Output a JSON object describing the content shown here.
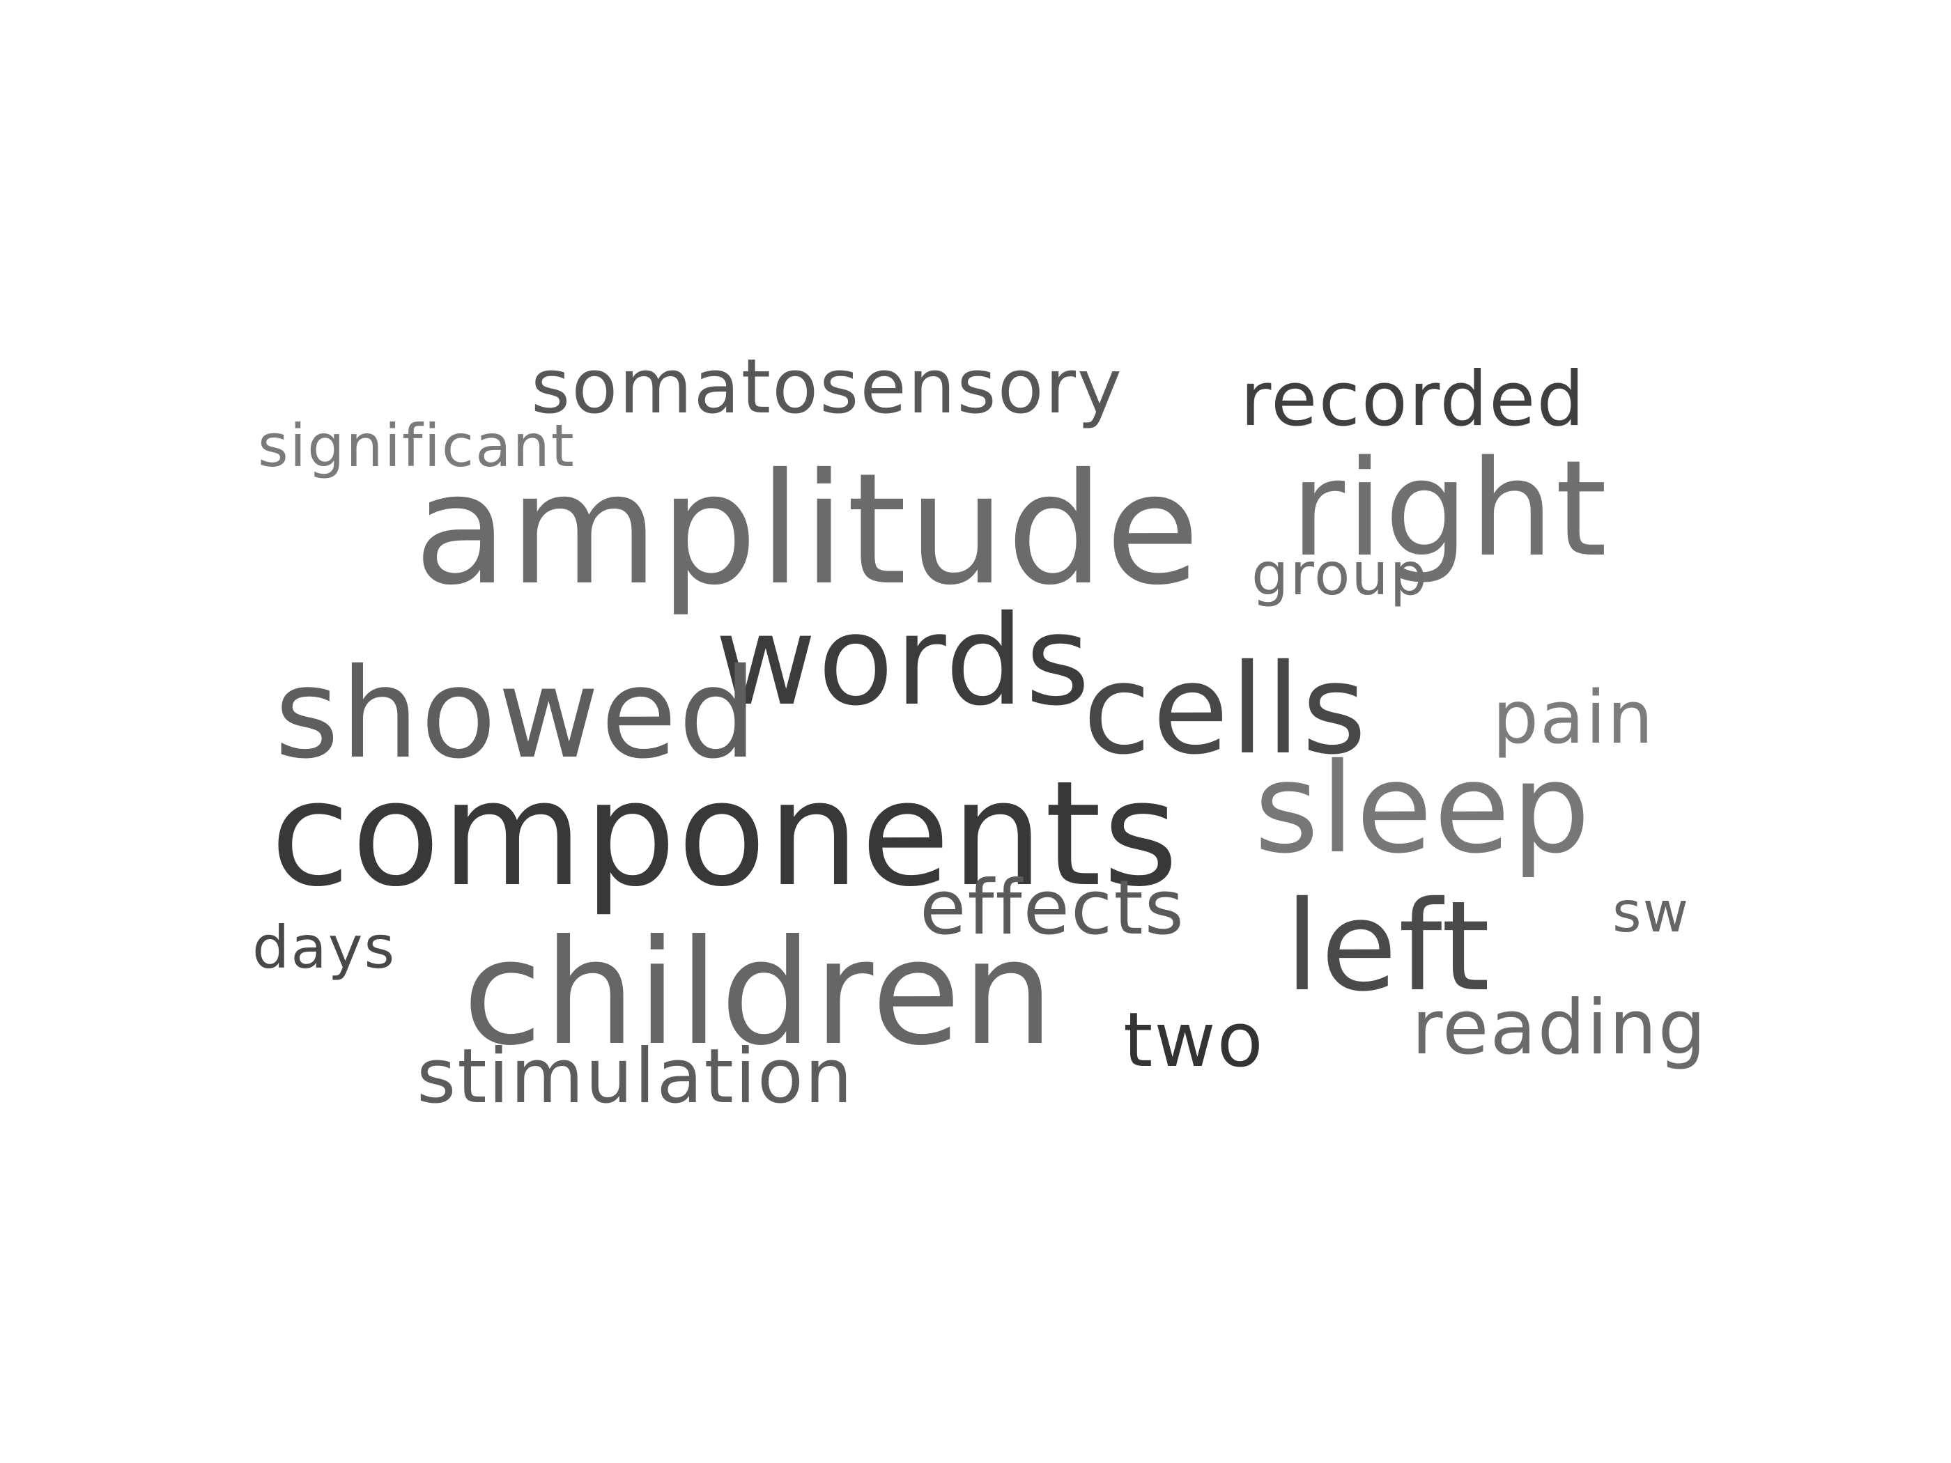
{
  "words": [
    {
      "id": "w-amplitude",
      "text": "amplitude",
      "color": "#6b6b6b"
    },
    {
      "id": "w-right",
      "text": "right",
      "color": "#707070"
    },
    {
      "id": "w-somatosensory",
      "text": "somatosensory",
      "color": "#575757"
    },
    {
      "id": "w-recorded",
      "text": "recorded",
      "color": "#3f3f3f"
    },
    {
      "id": "w-significant",
      "text": "significant",
      "color": "#7a7a7a"
    },
    {
      "id": "w-group",
      "text": "group",
      "color": "#6e6e6e"
    },
    {
      "id": "w-words",
      "text": "words",
      "color": "#3c3c3c"
    },
    {
      "id": "w-showed",
      "text": "showed",
      "color": "#5e5e5e"
    },
    {
      "id": "w-cells",
      "text": "cells",
      "color": "#474747"
    },
    {
      "id": "w-pain",
      "text": "pain",
      "color": "#7c7c7c"
    },
    {
      "id": "w-components",
      "text": "components",
      "color": "#383838"
    },
    {
      "id": "w-sleep",
      "text": "sleep",
      "color": "#777777"
    },
    {
      "id": "w-effects",
      "text": "effects",
      "color": "#5a5a5a"
    },
    {
      "id": "w-left",
      "text": "left",
      "color": "#4a4a4a"
    },
    {
      "id": "w-sw",
      "text": "sw",
      "color": "#656565"
    },
    {
      "id": "w-days",
      "text": "days",
      "color": "#484848"
    },
    {
      "id": "w-children",
      "text": "children",
      "color": "#666666"
    },
    {
      "id": "w-two",
      "text": "two",
      "color": "#333333"
    },
    {
      "id": "w-reading",
      "text": "reading",
      "color": "#6a6a6a"
    },
    {
      "id": "w-stimulation",
      "text": "stimulation",
      "color": "#5c5c5c"
    }
  ]
}
